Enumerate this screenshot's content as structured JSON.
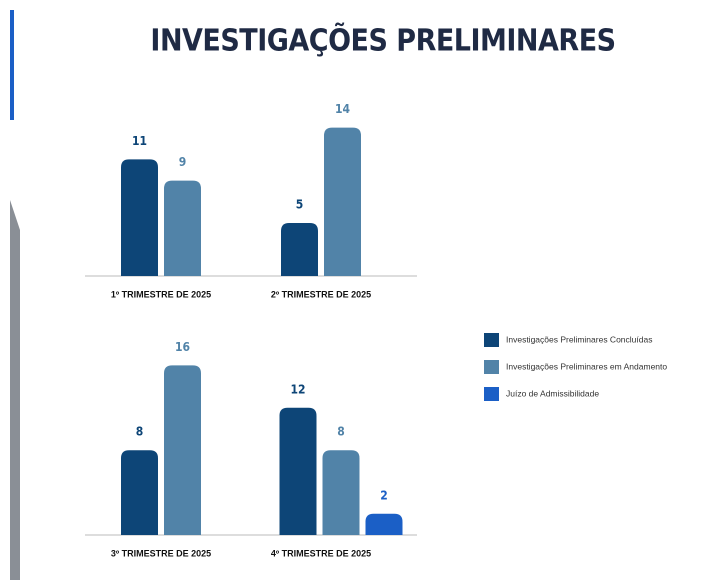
{
  "chart_data": {
    "type": "bar",
    "title": "INVESTIGAÇÕES PRELIMINARES",
    "categories": [
      "1º TRIMESTRE DE 2025",
      "2º TRIMESTRE DE 2025",
      "3º TRIMESTRE DE 2025",
      "4º TRIMESTRE DE 2025"
    ],
    "series": [
      {
        "name": "Investigações  Preliminares Concluídas",
        "color": "#0d4577",
        "values": [
          11,
          5,
          8,
          12
        ]
      },
      {
        "name": "Investigações  Preliminares em Andamento",
        "color": "#5183a8",
        "values": [
          9,
          14,
          16,
          8
        ]
      },
      {
        "name": "Juízo de Admissibilidade",
        "color": "#1b5fc6",
        "values": [
          null,
          null,
          null,
          2
        ]
      }
    ]
  }
}
